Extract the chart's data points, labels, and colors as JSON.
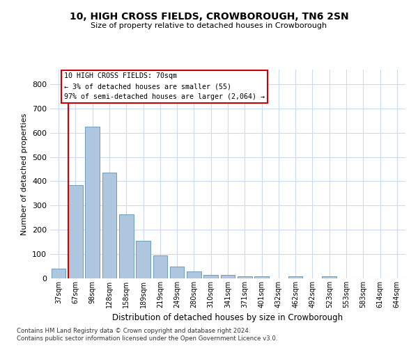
{
  "title": "10, HIGH CROSS FIELDS, CROWBOROUGH, TN6 2SN",
  "subtitle": "Size of property relative to detached houses in Crowborough",
  "xlabel": "Distribution of detached houses by size in Crowborough",
  "ylabel": "Number of detached properties",
  "categories": [
    "37sqm",
    "67sqm",
    "98sqm",
    "128sqm",
    "158sqm",
    "189sqm",
    "219sqm",
    "249sqm",
    "280sqm",
    "310sqm",
    "341sqm",
    "371sqm",
    "401sqm",
    "432sqm",
    "462sqm",
    "492sqm",
    "523sqm",
    "553sqm",
    "583sqm",
    "614sqm",
    "644sqm"
  ],
  "values": [
    40,
    385,
    625,
    435,
    265,
    155,
    95,
    50,
    28,
    15,
    15,
    10,
    10,
    0,
    10,
    0,
    8,
    0,
    0,
    0,
    0
  ],
  "bar_color": "#aec6de",
  "bar_edge_color": "#6a9dbf",
  "highlight_line_color": "#cc0000",
  "background_color": "#ffffff",
  "grid_color": "#ccdaeb",
  "ylim": [
    0,
    860
  ],
  "yticks": [
    0,
    100,
    200,
    300,
    400,
    500,
    600,
    700,
    800
  ],
  "annotation_text": "10 HIGH CROSS FIELDS: 70sqm\n← 3% of detached houses are smaller (55)\n97% of semi-detached houses are larger (2,064) →",
  "footnote1": "Contains HM Land Registry data © Crown copyright and database right 2024.",
  "footnote2": "Contains public sector information licensed under the Open Government Licence v3.0."
}
